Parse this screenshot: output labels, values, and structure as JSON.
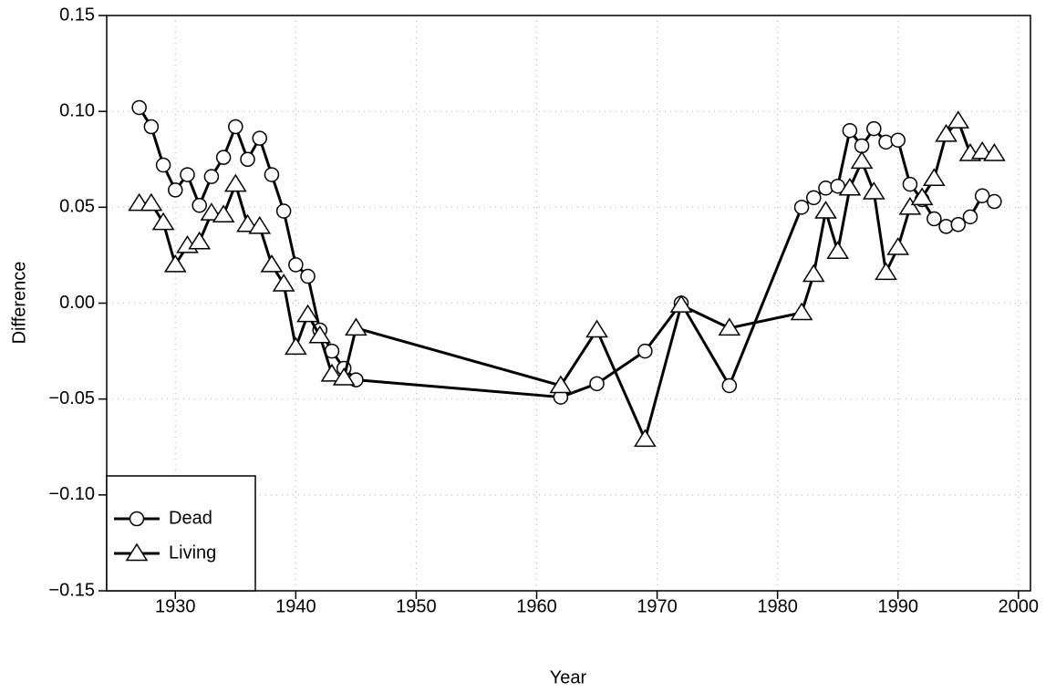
{
  "chart_data": {
    "type": "line",
    "xlabel": "Year",
    "ylabel": "Difference",
    "x": [
      1927,
      1928,
      1929,
      1930,
      1931,
      1932,
      1933,
      1934,
      1935,
      1936,
      1937,
      1938,
      1939,
      1940,
      1941,
      1942,
      1943,
      1944,
      1945,
      1962,
      1965,
      1969,
      1972,
      1976,
      1982,
      1983,
      1984,
      1985,
      1986,
      1987,
      1988,
      1989,
      1990,
      1991,
      1992,
      1993,
      1994,
      1995,
      1996,
      1997,
      1998
    ],
    "series": [
      {
        "name": "Dead",
        "color": "#000000",
        "marker": "circle",
        "values": [
          0.102,
          0.092,
          0.072,
          0.059,
          0.067,
          0.051,
          0.066,
          0.076,
          0.092,
          0.075,
          0.086,
          0.067,
          0.048,
          0.02,
          0.014,
          -0.014,
          -0.025,
          -0.034,
          -0.04,
          -0.049,
          -0.042,
          -0.025,
          0.0,
          -0.043,
          0.05,
          0.055,
          0.06,
          0.061,
          0.09,
          0.082,
          0.091,
          0.084,
          0.085,
          0.062,
          0.054,
          0.044,
          0.04,
          0.041,
          0.045,
          0.056,
          0.053
        ]
      },
      {
        "name": "Living",
        "color": "#000000",
        "marker": "triangle",
        "values": [
          0.052,
          0.052,
          0.042,
          0.02,
          0.03,
          0.032,
          0.047,
          0.046,
          0.062,
          0.041,
          0.04,
          0.02,
          0.01,
          -0.023,
          -0.006,
          -0.017,
          -0.037,
          -0.039,
          -0.013,
          -0.043,
          -0.014,
          -0.071,
          -0.001,
          -0.013,
          -0.005,
          0.015,
          0.048,
          0.027,
          0.06,
          0.074,
          0.058,
          0.016,
          0.029,
          0.05,
          0.055,
          0.065,
          0.088,
          0.095,
          0.078,
          0.079,
          0.078
        ]
      }
    ],
    "xlim": [
      1924.3,
      2001
    ],
    "xticks": [
      1930,
      1940,
      1950,
      1960,
      1970,
      1980,
      1990,
      2000
    ],
    "ylim": [
      -0.15,
      0.15
    ],
    "yticks": [
      {
        "value": -0.15,
        "label": "−0.15"
      },
      {
        "value": -0.1,
        "label": "−0.10"
      },
      {
        "value": -0.05,
        "label": "−0.05"
      },
      {
        "value": 0,
        "label": "0.00"
      },
      0.05,
      {
        "value": 0.1,
        "label": "0.10"
      },
      0.15
    ],
    "grid": true,
    "legend": "bottom-left"
  }
}
